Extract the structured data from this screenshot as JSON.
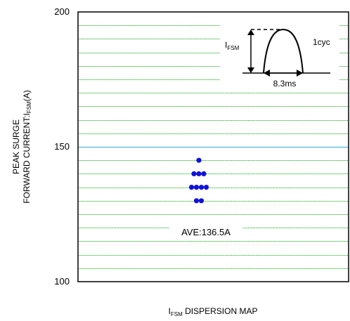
{
  "chart_data": {
    "type": "scatter",
    "title": "",
    "xlabel_main": "I",
    "xlabel_sub": "FSM",
    "xlabel_rest": " DISPERSION MAP",
    "ylabel_line1": "PEAK SURGE",
    "ylabel_line2_pre": "FORWARD CURRENT:I",
    "ylabel_line2_sub": "FSM",
    "ylabel_line2_post": "(A)",
    "ylim": [
      100,
      200
    ],
    "yticks": [
      100,
      150,
      200
    ],
    "grid_step": 5,
    "highlight_gridline": 150,
    "points": [
      {
        "col": 0,
        "y": 145
      },
      {
        "col": -1,
        "y": 140
      },
      {
        "col": 0,
        "y": 140
      },
      {
        "col": 1,
        "y": 140
      },
      {
        "col": -1.5,
        "y": 135
      },
      {
        "col": -0.5,
        "y": 135
      },
      {
        "col": 0.5,
        "y": 135
      },
      {
        "col": 1.5,
        "y": 135
      },
      {
        "col": -0.5,
        "y": 130
      },
      {
        "col": 0.5,
        "y": 130
      }
    ],
    "average_label": "AVE:136.5A",
    "inset": {
      "ifsm_main": "I",
      "ifsm_sub": "FSM",
      "cycle_label": "1cyc",
      "period_label": "8.3ms"
    },
    "colors": {
      "grid": "#22aa22",
      "highlight": "#33aadd",
      "points": "#1010dd",
      "axis": "#000000"
    }
  }
}
